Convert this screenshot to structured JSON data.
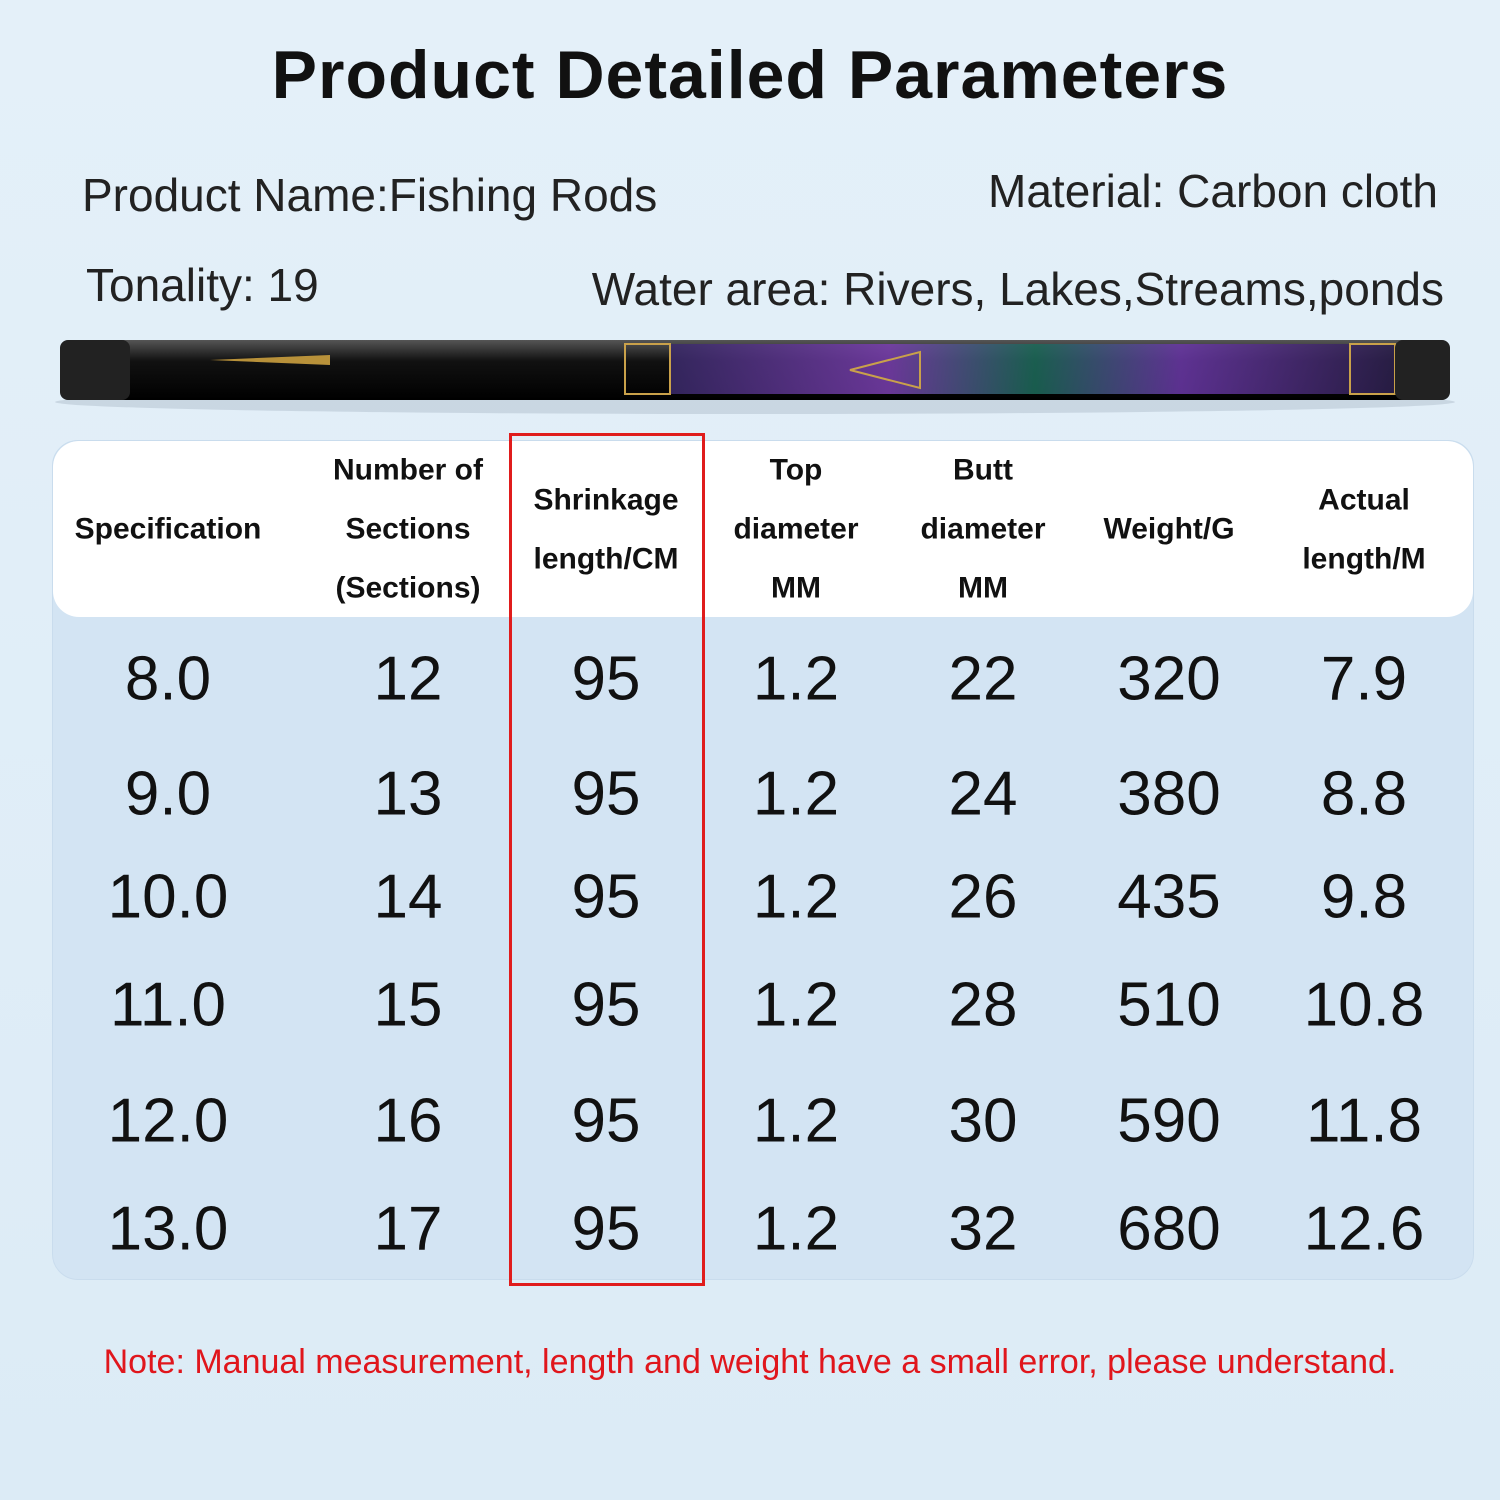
{
  "header": {
    "title": "Product Detailed Parameters",
    "product_name": "Product Name:Fishing Rods",
    "material": "Material: Carbon cloth",
    "tonality": "Tonality: 19",
    "water_area": "Water area: Rivers, Lakes,Streams,ponds"
  },
  "table": {
    "columns": [
      [
        "Specification"
      ],
      [
        "Number of",
        "Sections",
        "(Sections)"
      ],
      [
        "Shrinkage",
        "length/CM"
      ],
      [
        "Top",
        "diameter",
        "MM"
      ],
      [
        "Butt",
        "diameter",
        "MM"
      ],
      [
        "Weight/G"
      ],
      [
        "Actual",
        "length/M"
      ]
    ],
    "rows": [
      [
        "8.0",
        "12",
        "95",
        "1.2",
        "22",
        "320",
        "7.9"
      ],
      [
        "9.0",
        "13",
        "95",
        "1.2",
        "24",
        "380",
        "8.8"
      ],
      [
        "10.0",
        "14",
        "95",
        "1.2",
        "26",
        "435",
        "9.8"
      ],
      [
        "11.0",
        "15",
        "95",
        "1.2",
        "28",
        "510",
        "10.8"
      ],
      [
        "12.0",
        "16",
        "95",
        "1.2",
        "30",
        "590",
        "11.8"
      ],
      [
        "13.0",
        "17",
        "95",
        "1.2",
        "32",
        "680",
        "12.6"
      ]
    ]
  },
  "note": "Note: Manual measurement, length and weight have a small error, please understand."
}
